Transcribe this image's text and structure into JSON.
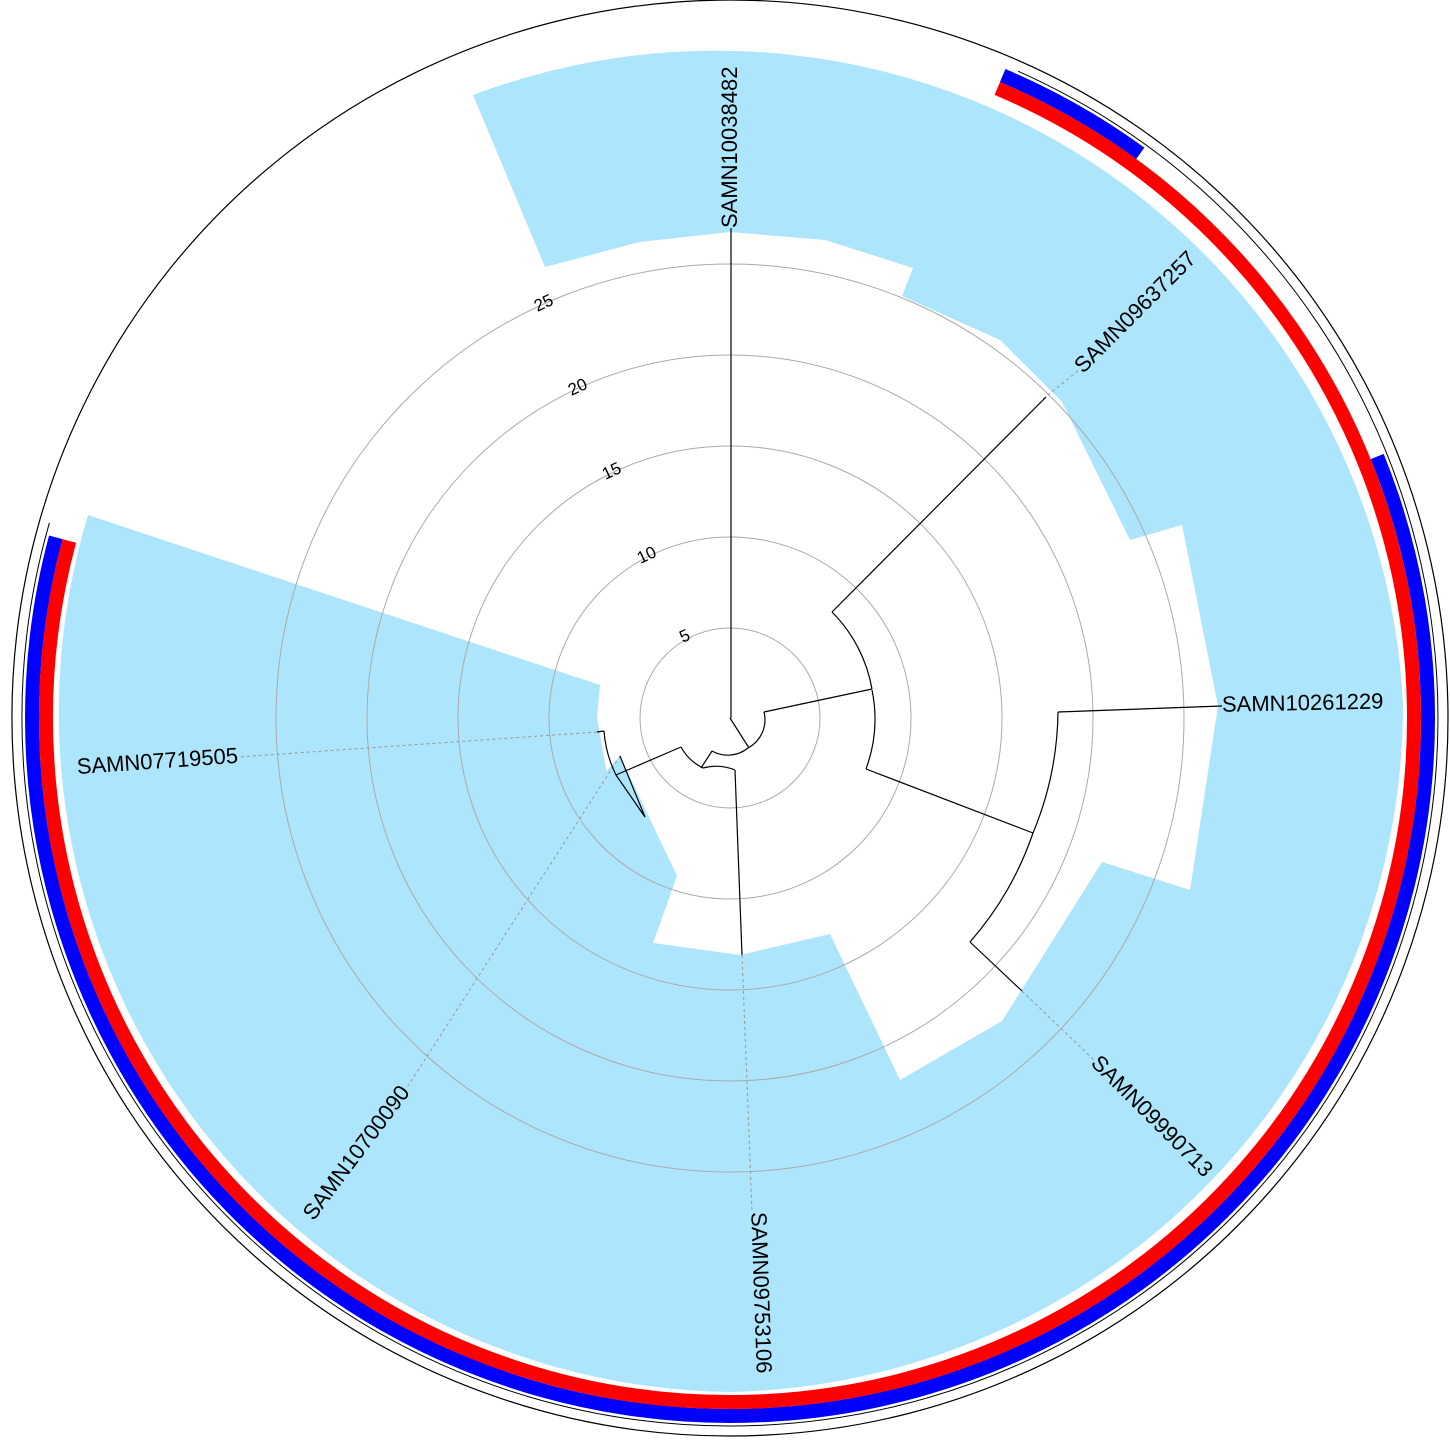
{
  "colors": {
    "highlight": "#ade5fc",
    "ring_outer": "#0000ff",
    "ring_inner": "#ff0000",
    "branch": "#000000",
    "grid": "#aaaaaa",
    "leader": "#999999",
    "background": "#ffffff"
  },
  "scale": {
    "ticks": [
      "5",
      "10",
      "15",
      "20",
      "25"
    ]
  },
  "tips": [
    {
      "label": "SAMN10038482"
    },
    {
      "label": "SAMN09637257"
    },
    {
      "label": "SAMN10261229"
    },
    {
      "label": "SAMN09990713"
    },
    {
      "label": "SAMN09753106"
    },
    {
      "label": "SAMN10700090"
    },
    {
      "label": "SAMN07719505"
    }
  ],
  "rings": [
    {
      "name": "outer-ring",
      "color_key": "ring_outer"
    },
    {
      "name": "inner-ring",
      "color_key": "ring_inner"
    }
  ]
}
